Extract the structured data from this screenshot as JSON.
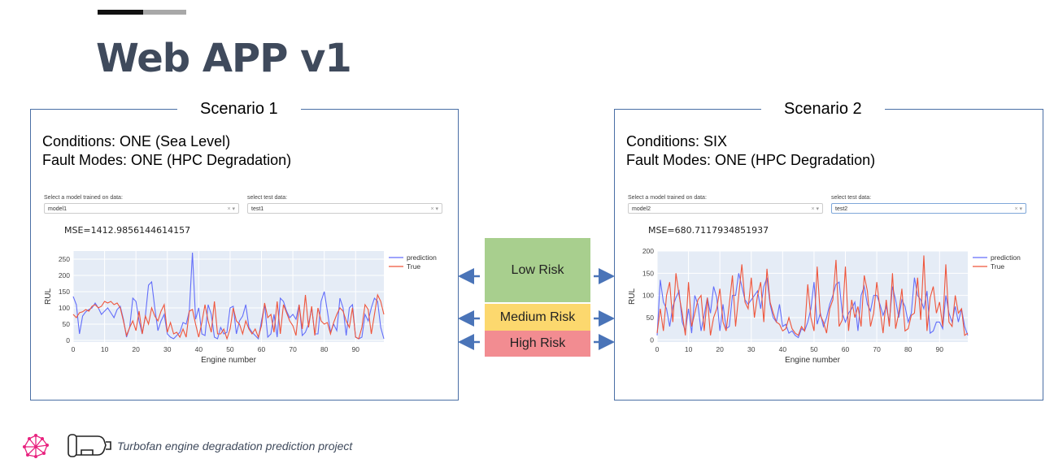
{
  "slide": {
    "title": "Web APP v1",
    "footer": "Turbofan engine degradation prediction project",
    "icons": [
      "brain-network-icon",
      "turbofan-engine-icon"
    ]
  },
  "risk_levels": {
    "low": "Low Risk",
    "medium": "Medium Risk",
    "high": "High Risk",
    "colors": {
      "low": "#a8cf8e",
      "medium": "#fcd86e",
      "high": "#f28c91"
    }
  },
  "scenarios": [
    {
      "title": "Scenario 1",
      "conditions": "Conditions: ONE (Sea Level)",
      "fault_modes": "Fault Modes: ONE (HPC Degradation)",
      "model_label": "Select a model trained on data:",
      "model_value": "model1",
      "test_label": "select test data:",
      "test_value": "test1",
      "mse": "MSE=1412.9856144614157"
    },
    {
      "title": "Scenario 2",
      "conditions": "Conditions: SIX",
      "fault_modes": "Fault Modes: ONE (HPC Degradation)",
      "model_label": "Select a model trained on data:",
      "model_value": "model2",
      "test_label": "select test data:",
      "test_value": "test2",
      "mse": "MSE=680.7117934851937"
    }
  ],
  "chart_data": [
    {
      "type": "line",
      "xlabel": "Engine number",
      "ylabel": "RUL",
      "xlim": [
        0,
        99
      ],
      "ylim": [
        -5,
        275
      ],
      "xticks": [
        0,
        10,
        20,
        30,
        40,
        50,
        60,
        70,
        80,
        90
      ],
      "yticks": [
        0,
        50,
        100,
        150,
        200,
        250
      ],
      "legend": "top-right",
      "grid": true,
      "series": [
        {
          "name": "prediction",
          "color": "#636efa",
          "values": [
            135,
            110,
            20,
            75,
            88,
            95,
            100,
            115,
            100,
            80,
            90,
            100,
            85,
            70,
            95,
            105,
            65,
            10,
            40,
            130,
            120,
            60,
            20,
            75,
            170,
            180,
            100,
            30,
            60,
            80,
            20,
            10,
            5,
            15,
            25,
            55,
            50,
            90,
            270,
            65,
            100,
            20,
            15,
            110,
            80,
            10,
            5,
            40,
            20,
            25,
            100,
            105,
            20,
            60,
            75,
            110,
            40,
            25,
            15,
            5,
            60,
            110,
            10,
            20,
            80,
            10,
            130,
            120,
            90,
            70,
            80,
            65,
            110,
            15,
            25,
            50,
            100,
            20,
            20,
            120,
            150,
            90,
            25,
            50,
            30,
            130,
            100,
            15,
            100,
            110,
            10,
            5,
            10,
            80,
            60,
            100,
            130,
            120,
            40,
            5
          ]
        },
        {
          "name": "True",
          "color": "#ef553b",
          "values": [
            80,
            70,
            85,
            88,
            95,
            90,
            105,
            110,
            100,
            105,
            120,
            115,
            120,
            110,
            115,
            100,
            60,
            15,
            40,
            60,
            30,
            90,
            20,
            75,
            50,
            100,
            75,
            60,
            90,
            110,
            25,
            55,
            20,
            25,
            10,
            35,
            10,
            90,
            95,
            50,
            10,
            55,
            110,
            60,
            25,
            120,
            20,
            20,
            35,
            5,
            35,
            100,
            60,
            50,
            20,
            60,
            35,
            20,
            35,
            10,
            45,
            115,
            70,
            80,
            25,
            120,
            20,
            110,
            85,
            60,
            45,
            15,
            110,
            35,
            140,
            40,
            105,
            15,
            100,
            60,
            50,
            55,
            20,
            55,
            80,
            100,
            90,
            60,
            40,
            100,
            10,
            5,
            40,
            110,
            95,
            20,
            80,
            140,
            120,
            80
          ]
        }
      ]
    },
    {
      "type": "line",
      "xlabel": "Engine number",
      "ylabel": "RUL",
      "xlim": [
        0,
        99
      ],
      "ylim": [
        -5,
        200
      ],
      "xticks": [
        0,
        10,
        20,
        30,
        40,
        50,
        60,
        70,
        80,
        90
      ],
      "yticks": [
        0,
        50,
        100,
        150,
        200
      ],
      "legend": "top-right",
      "grid": true,
      "series": [
        {
          "name": "prediction",
          "color": "#636efa",
          "values": [
            10,
            135,
            85,
            70,
            30,
            75,
            95,
            110,
            40,
            20,
            70,
            15,
            100,
            80,
            20,
            55,
            95,
            60,
            120,
            95,
            20,
            80,
            25,
            30,
            100,
            100,
            150,
            120,
            90,
            80,
            90,
            100,
            110,
            70,
            120,
            140,
            80,
            50,
            40,
            80,
            30,
            35,
            15,
            20,
            10,
            5,
            25,
            20,
            40,
            70,
            130,
            35,
            60,
            30,
            50,
            80,
            100,
            125,
            130,
            60,
            40,
            60,
            70,
            85,
            20,
            100,
            120,
            80,
            65,
            100,
            100,
            80,
            55,
            75,
            40,
            120,
            90,
            50,
            90,
            75,
            40,
            60,
            140,
            100,
            90,
            70,
            110,
            15,
            20,
            40,
            40,
            25,
            100,
            60,
            40,
            75,
            40,
            70,
            30,
            10
          ]
        },
        {
          "name": "True",
          "color": "#ef553b",
          "values": [
            15,
            70,
            20,
            100,
            130,
            40,
            150,
            100,
            60,
            10,
            130,
            30,
            60,
            90,
            100,
            20,
            95,
            10,
            50,
            70,
            115,
            40,
            20,
            80,
            145,
            30,
            100,
            170,
            85,
            70,
            140,
            50,
            100,
            130,
            40,
            160,
            85,
            60,
            40,
            35,
            20,
            25,
            50,
            25,
            15,
            10,
            30,
            20,
            125,
            50,
            20,
            165,
            55,
            40,
            15,
            70,
            90,
            180,
            30,
            45,
            165,
            20,
            90,
            50,
            75,
            30,
            145,
            110,
            30,
            60,
            130,
            70,
            15,
            90,
            30,
            150,
            25,
            60,
            115,
            20,
            25,
            55,
            60,
            140,
            45,
            190,
            20,
            95,
            120,
            60,
            85,
            30,
            170,
            40,
            30,
            100,
            60,
            70,
            10,
            15
          ]
        }
      ]
    }
  ]
}
